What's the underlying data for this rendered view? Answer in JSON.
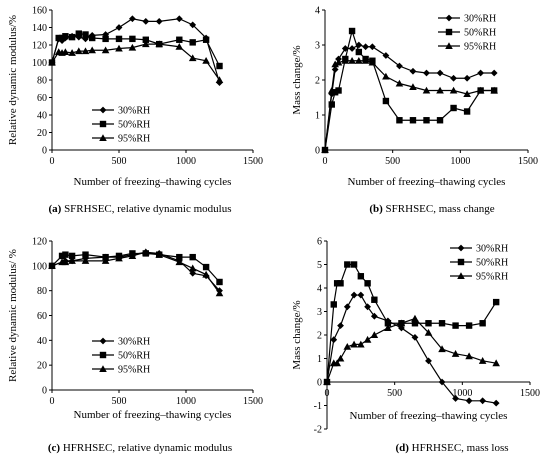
{
  "chart_data": [
    {
      "id": "a",
      "type": "line",
      "caption_letter": "(a)",
      "caption_text": " SFRHSEC, relative dynamic modulus",
      "xlabel": "Number of freezing–thawing cycles",
      "ylabel": "Relative dynamic modulus/%",
      "xlim": [
        0,
        1500
      ],
      "ylim": [
        0,
        160
      ],
      "xticks": [
        0,
        500,
        1000,
        1500
      ],
      "yticks": [
        0,
        20,
        40,
        60,
        80,
        100,
        120,
        140,
        160
      ],
      "legend_position": "bottom-left",
      "series": [
        {
          "name": "30%RH",
          "marker": "diamond",
          "x": [
            0,
            50,
            75,
            100,
            150,
            200,
            250,
            300,
            400,
            500,
            600,
            700,
            800,
            950,
            1050,
            1150,
            1250
          ],
          "y": [
            100,
            127,
            125,
            128,
            130,
            129,
            127,
            131,
            132,
            140,
            150,
            147,
            147,
            150,
            143,
            128,
            77
          ]
        },
        {
          "name": "50%RH",
          "marker": "square",
          "x": [
            0,
            50,
            75,
            100,
            150,
            200,
            250,
            300,
            400,
            500,
            600,
            700,
            800,
            950,
            1050,
            1150,
            1250
          ],
          "y": [
            100,
            128,
            128,
            130,
            129,
            133,
            132,
            128,
            127,
            127,
            127,
            126,
            121,
            126,
            123,
            126,
            96
          ]
        },
        {
          "name": "95%RH",
          "marker": "triangle",
          "x": [
            0,
            50,
            75,
            100,
            150,
            200,
            250,
            300,
            400,
            500,
            600,
            700,
            800,
            950,
            1050,
            1150,
            1250
          ],
          "y": [
            100,
            112,
            111,
            112,
            111,
            113,
            113,
            114,
            114,
            116,
            117,
            121,
            121,
            118,
            105,
            102,
            80
          ]
        }
      ]
    },
    {
      "id": "b",
      "type": "line",
      "caption_letter": "(b)",
      "caption_text": " SFRHSEC, mass change",
      "xlabel": "Number of freezing–thawing cycles",
      "ylabel": "Mass change/%",
      "xlim": [
        0,
        1500
      ],
      "ylim": [
        0,
        4
      ],
      "xticks": [
        0,
        500,
        1000,
        1500
      ],
      "yticks": [
        0,
        1,
        2,
        3,
        4
      ],
      "legend_position": "top-right",
      "series": [
        {
          "name": "30%RH",
          "marker": "diamond",
          "x": [
            0,
            50,
            75,
            100,
            150,
            200,
            250,
            300,
            350,
            450,
            550,
            650,
            750,
            850,
            950,
            1050,
            1150,
            1250
          ],
          "y": [
            0,
            1.6,
            2.3,
            2.6,
            2.9,
            2.9,
            3.0,
            2.95,
            2.95,
            2.7,
            2.4,
            2.25,
            2.2,
            2.2,
            2.05,
            2.05,
            2.2,
            2.2
          ]
        },
        {
          "name": "50%RH",
          "marker": "square",
          "x": [
            0,
            50,
            75,
            100,
            150,
            200,
            250,
            300,
            350,
            450,
            550,
            650,
            750,
            850,
            950,
            1050,
            1150,
            1250
          ],
          "y": [
            0,
            1.3,
            1.65,
            1.7,
            2.6,
            3.4,
            2.8,
            2.6,
            2.55,
            1.4,
            0.85,
            0.85,
            0.85,
            0.85,
            1.2,
            1.1,
            1.7,
            1.7
          ]
        },
        {
          "name": "95%RH",
          "marker": "triangle",
          "x": [
            0,
            50,
            75,
            100,
            150,
            200,
            250,
            300,
            350,
            450,
            550,
            650,
            750,
            850,
            950,
            1050,
            1150,
            1250
          ],
          "y": [
            0,
            1.7,
            2.45,
            2.5,
            2.55,
            2.55,
            2.55,
            2.55,
            2.5,
            2.1,
            1.9,
            1.8,
            1.7,
            1.7,
            1.7,
            1.6,
            1.7,
            1.7
          ]
        }
      ]
    },
    {
      "id": "c",
      "type": "line",
      "caption_letter": "(c)",
      "caption_text": " HFRHSEC, relative dynamic modulus",
      "xlabel": "Number of freezing–thawing cycles",
      "ylabel": "Relative dynamic modulus/ %",
      "xlim": [
        0,
        1500
      ],
      "ylim": [
        0,
        120
      ],
      "xticks": [
        0,
        500,
        1000,
        1500
      ],
      "yticks": [
        0,
        20,
        40,
        60,
        80,
        100,
        120
      ],
      "legend_position": "bottom-left",
      "series": [
        {
          "name": "30%RH",
          "marker": "diamond",
          "x": [
            0,
            100,
            150,
            250,
            400,
            500,
            600,
            700,
            800,
            950,
            1050,
            1150,
            1250
          ],
          "y": [
            100,
            104,
            104,
            106,
            107,
            107,
            109,
            111,
            110,
            104,
            94,
            92,
            80
          ]
        },
        {
          "name": "50%RH",
          "marker": "square",
          "x": [
            0,
            75,
            100,
            150,
            250,
            400,
            500,
            600,
            700,
            800,
            950,
            1050,
            1150,
            1250
          ],
          "y": [
            100,
            108,
            109,
            108,
            109,
            107,
            108,
            110,
            110,
            109,
            107,
            107,
            99,
            87
          ]
        },
        {
          "name": "95%RH",
          "marker": "triangle",
          "x": [
            0,
            75,
            100,
            150,
            250,
            400,
            500,
            600,
            700,
            800,
            950,
            1050,
            1150,
            1250
          ],
          "y": [
            100,
            103,
            103,
            104,
            104,
            104,
            106,
            108,
            111,
            109,
            103,
            98,
            93,
            78
          ]
        }
      ]
    },
    {
      "id": "d",
      "type": "line",
      "caption_letter": "(d)",
      "caption_text": " HFRHSEC, mass loss",
      "xlabel": "Number of freezing–thawing cycles",
      "ylabel": "Mass change/%",
      "xlim": [
        0,
        1500
      ],
      "ylim": [
        -2,
        6
      ],
      "xticks": [
        0,
        500,
        1000,
        1500
      ],
      "yticks": [
        -2,
        -1,
        0,
        1,
        2,
        3,
        4,
        5,
        6
      ],
      "legend_position": "top-right",
      "series": [
        {
          "name": "30%RH",
          "marker": "diamond",
          "x": [
            0,
            50,
            100,
            150,
            200,
            250,
            300,
            350,
            450,
            550,
            650,
            750,
            850,
            950,
            1050,
            1150,
            1250
          ],
          "y": [
            0,
            1.8,
            2.4,
            3.2,
            3.7,
            3.7,
            3.2,
            2.8,
            2.6,
            2.3,
            1.9,
            0.9,
            0.0,
            -0.7,
            -0.8,
            -0.8,
            -0.9
          ]
        },
        {
          "name": "50%RH",
          "marker": "square",
          "x": [
            0,
            50,
            75,
            100,
            150,
            200,
            250,
            300,
            350,
            450,
            550,
            650,
            750,
            850,
            950,
            1050,
            1150,
            1250
          ],
          "y": [
            0,
            3.3,
            4.2,
            4.2,
            5.0,
            5.0,
            4.5,
            4.2,
            3.5,
            2.5,
            2.5,
            2.5,
            2.5,
            2.5,
            2.4,
            2.4,
            2.5,
            3.4
          ]
        },
        {
          "name": "95%RH",
          "marker": "triangle",
          "x": [
            0,
            50,
            75,
            100,
            150,
            200,
            250,
            300,
            350,
            450,
            550,
            650,
            750,
            850,
            950,
            1050,
            1150,
            1250
          ],
          "y": [
            0,
            0.8,
            0.8,
            1.0,
            1.5,
            1.6,
            1.6,
            1.8,
            2.0,
            2.3,
            2.5,
            2.7,
            2.1,
            1.4,
            1.2,
            1.1,
            0.9,
            0.8
          ]
        }
      ]
    }
  ]
}
